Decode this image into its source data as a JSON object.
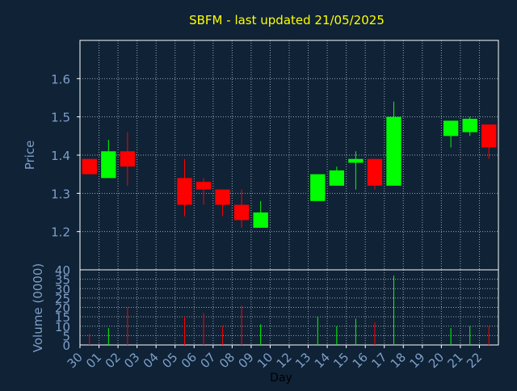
{
  "chart_data": [
    {
      "type": "candlestick",
      "title": "SBFM - last updated 21/05/2025",
      "ylabel": "Price",
      "ylim": [
        1.1,
        1.7
      ],
      "yticks": [
        "1.2",
        "1.3",
        "1.4",
        "1.5",
        "1.6"
      ],
      "grid": true,
      "candles": [
        {
          "x": 0,
          "open": 1.39,
          "high": 1.39,
          "low": 1.35,
          "close": 1.35
        },
        {
          "x": 1,
          "open": 1.34,
          "high": 1.44,
          "low": 1.34,
          "close": 1.41
        },
        {
          "x": 2,
          "open": 1.41,
          "high": 1.46,
          "low": 1.32,
          "close": 1.37
        },
        {
          "x": 5,
          "open": 1.34,
          "high": 1.39,
          "low": 1.24,
          "close": 1.27
        },
        {
          "x": 6,
          "open": 1.33,
          "high": 1.34,
          "low": 1.27,
          "close": 1.31
        },
        {
          "x": 7,
          "open": 1.31,
          "high": 1.31,
          "low": 1.24,
          "close": 1.27
        },
        {
          "x": 8,
          "open": 1.27,
          "high": 1.31,
          "low": 1.21,
          "close": 1.23
        },
        {
          "x": 9,
          "open": 1.21,
          "high": 1.28,
          "low": 1.21,
          "close": 1.25
        },
        {
          "x": 12,
          "open": 1.28,
          "high": 1.35,
          "low": 1.28,
          "close": 1.35
        },
        {
          "x": 13,
          "open": 1.32,
          "high": 1.37,
          "low": 1.32,
          "close": 1.36
        },
        {
          "x": 14,
          "open": 1.38,
          "high": 1.41,
          "low": 1.31,
          "close": 1.39
        },
        {
          "x": 15,
          "open": 1.39,
          "high": 1.39,
          "low": 1.31,
          "close": 1.32
        },
        {
          "x": 16,
          "open": 1.32,
          "high": 1.54,
          "low": 1.32,
          "close": 1.5
        },
        {
          "x": 19,
          "open": 1.45,
          "high": 1.49,
          "low": 1.42,
          "close": 1.49
        },
        {
          "x": 20,
          "open": 1.46,
          "high": 1.5,
          "low": 1.45,
          "close": 1.495
        },
        {
          "x": 21,
          "open": 1.48,
          "high": 1.48,
          "low": 1.39,
          "close": 1.42
        }
      ],
      "up_color": "#00ff00",
      "down_color": "#ff0000"
    },
    {
      "type": "bar",
      "ylabel": "Volume (0000)",
      "xlabel": "Day",
      "ylim": [
        0,
        40
      ],
      "yticks": [
        "0",
        "5",
        "10",
        "15",
        "20",
        "25",
        "30",
        "35",
        "40"
      ],
      "x": [
        0,
        1,
        2,
        5,
        6,
        7,
        8,
        9,
        12,
        13,
        14,
        15,
        16,
        19,
        20,
        21
      ],
      "values": [
        6,
        9,
        20,
        15,
        17,
        10,
        21,
        11,
        15,
        10,
        14,
        12,
        37,
        9,
        10,
        10
      ],
      "grid": true
    }
  ],
  "xticks": [
    "30",
    "01",
    "02",
    "03",
    "04",
    "05",
    "06",
    "07",
    "08",
    "09",
    "10",
    "12",
    "13",
    "14",
    "15",
    "16",
    "17",
    "18",
    "19",
    "20",
    "21",
    "22"
  ],
  "colors": {
    "background": "#0f2236",
    "axis": "#ffffff",
    "grid": "#9aa7b6",
    "title": "#ffff00",
    "label": "#7f9fc8",
    "xlabel": "#000000"
  }
}
